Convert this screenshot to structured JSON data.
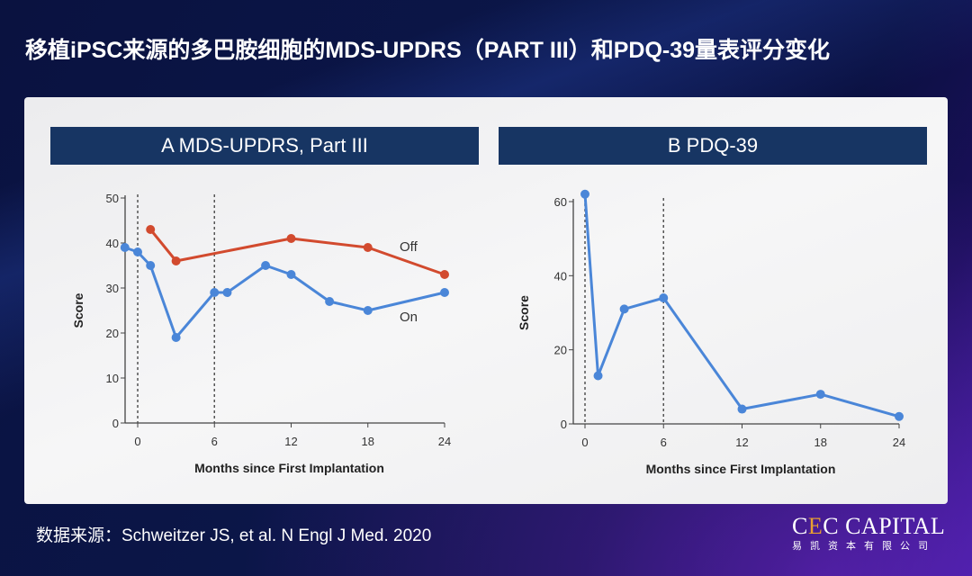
{
  "title": "移植iPSC来源的多巴胺细胞的MDS-UPDRS（PART III）和PDQ-39量表评分变化",
  "source": "数据来源：Schweitzer JS, et al.  N Engl J Med. 2020",
  "logo": {
    "en_prefix": "C",
    "en_e": "E",
    "en_rest": "C CAPITAL",
    "cn": "易凯资本有限公司"
  },
  "colors": {
    "on": "#4a86d8",
    "off": "#d24a2e",
    "header": "#173563"
  },
  "chart_data": [
    {
      "type": "line",
      "panel_title": "A MDS-UPDRS, Part III",
      "xlabel": "Months since First Implantation",
      "ylabel": "Score",
      "xlim": [
        -1,
        24
      ],
      "ylim": [
        0,
        50
      ],
      "xticks": [
        0,
        6,
        12,
        18,
        24
      ],
      "yticks": [
        0,
        10,
        20,
        30,
        40,
        50
      ],
      "vlines": [
        0,
        6
      ],
      "grid": false,
      "series": [
        {
          "name": "Off",
          "x": [
            1,
            3,
            12,
            18,
            24
          ],
          "y": [
            43,
            36,
            41,
            39,
            33
          ]
        },
        {
          "name": "On",
          "x": [
            -1,
            0,
            1,
            3,
            6,
            7,
            10,
            12,
            15,
            18,
            24
          ],
          "y": [
            39,
            38,
            35,
            19,
            29,
            29,
            35,
            33,
            27,
            25,
            29
          ]
        }
      ]
    },
    {
      "type": "line",
      "panel_title": "B PDQ-39",
      "xlabel": "Months since First Implantation",
      "ylabel": "Score",
      "xlim": [
        0,
        24
      ],
      "ylim": [
        0,
        60
      ],
      "xticks": [
        0,
        6,
        12,
        18,
        24
      ],
      "yticks": [
        0,
        20,
        40,
        60
      ],
      "vlines": [
        0,
        6
      ],
      "grid": false,
      "series": [
        {
          "x": [
            0,
            1,
            3,
            6,
            12,
            18,
            24
          ],
          "y": [
            62,
            13,
            31,
            34,
            4,
            8,
            2
          ]
        }
      ]
    }
  ]
}
